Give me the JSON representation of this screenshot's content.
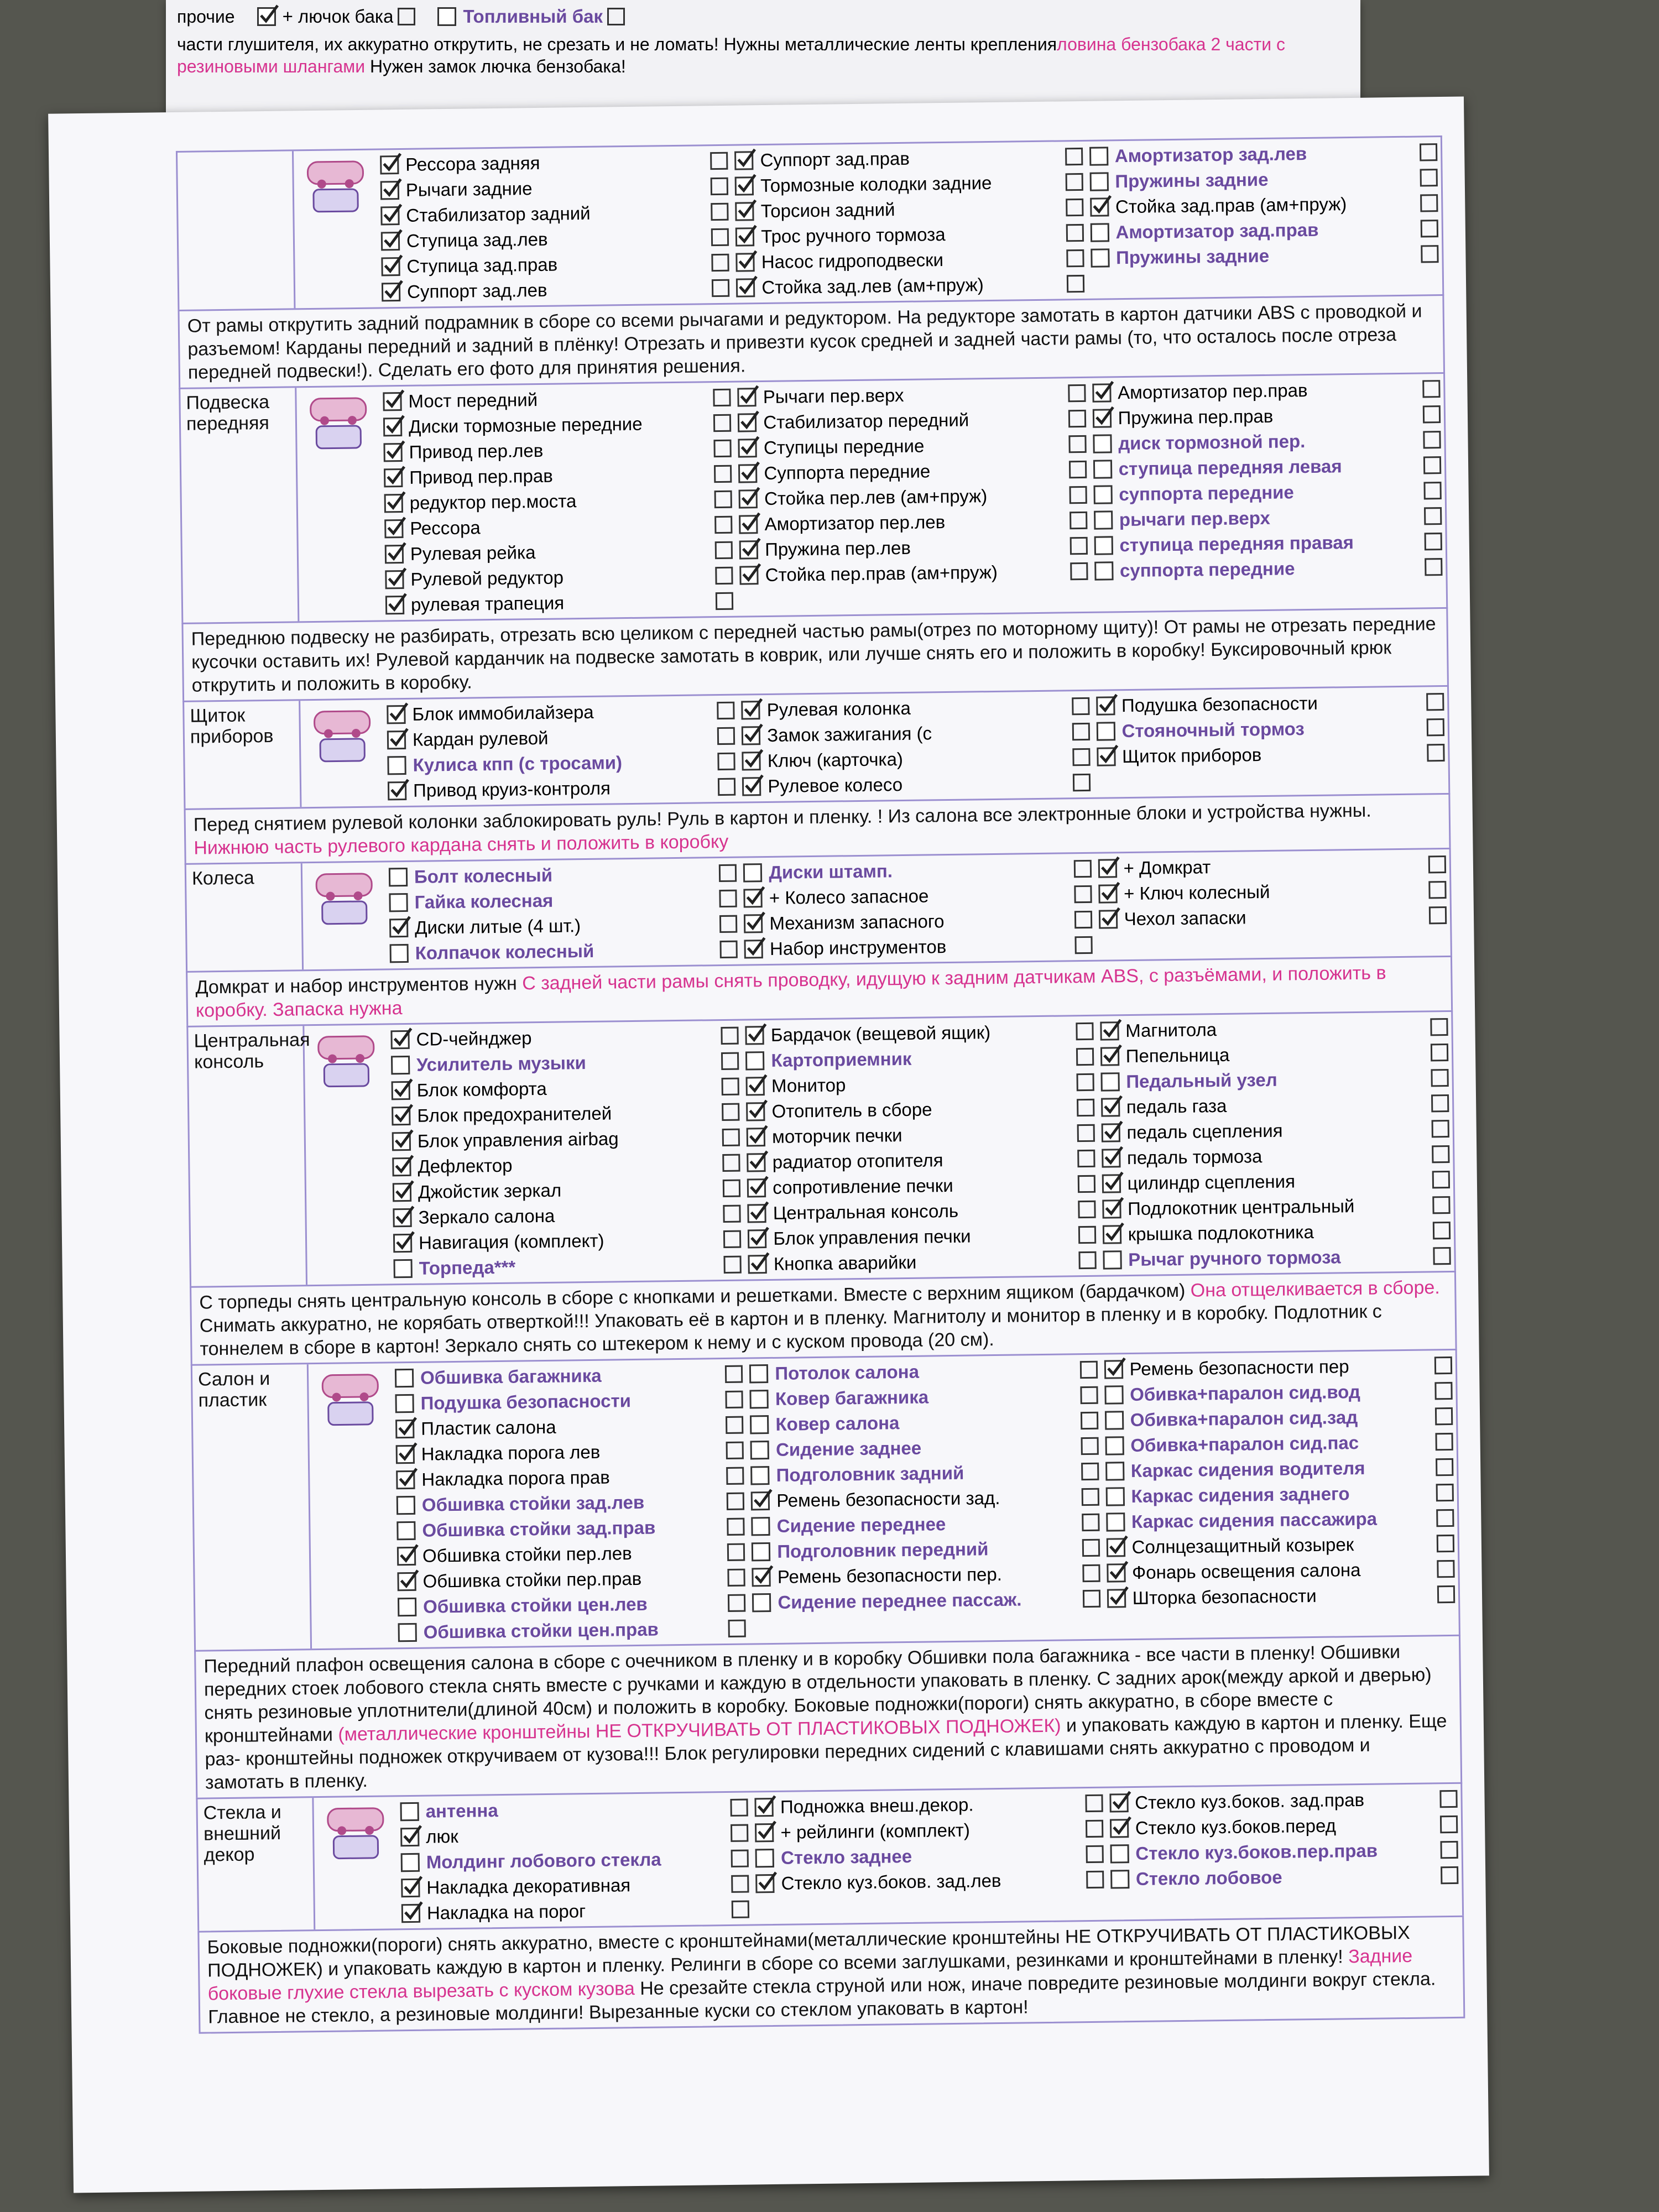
{
  "top_sheet": {
    "label": "прочие",
    "items": [
      {
        "label": "+ лючок бака",
        "checked": true
      },
      {
        "label": "Топливный бак",
        "checked": false
      }
    ],
    "note": [
      {
        "text": "части глушителя, их аккуратно открутить, не срезать и не ломать! Нужны металлические ленты крепления"
      },
      {
        "text": "ловина бензобака 2 части с резиновыми шлангами",
        "color": "#d6338f"
      },
      {
        "text": " Нужен замок лючка бензобака!"
      }
    ]
  },
  "sections": [
    {
      "columns": [
        [
          {
            "label": "Рессора задняя",
            "checked": true
          },
          {
            "label": "Рычаги задние",
            "checked": true
          },
          {
            "label": "Стабилизатор задний",
            "checked": true
          },
          {
            "label": "Ступица зад.лев",
            "checked": true
          },
          {
            "label": "Ступица зад.прав",
            "checked": true
          },
          {
            "label": "Суппорт зад.лев",
            "checked": true
          }
        ],
        [
          {
            "label": "Суппорт зад.прав",
            "checked": true
          },
          {
            "label": "Тормозные колодки задние",
            "checked": true
          },
          {
            "label": "Торсион задний",
            "checked": true
          },
          {
            "label": "Трос ручного тормоза",
            "checked": true
          },
          {
            "label": "Насос гидроподвески",
            "checked": true
          },
          {
            "label": "Стойка зад.лев (ам+пруж)",
            "checked": true
          }
        ],
        [
          {
            "label": "Амортизатор зад.лев",
            "checked": false
          },
          {
            "label": "Пружины задние",
            "checked": false
          },
          {
            "label": "Стойка зад.прав (ам+пруж)",
            "checked": true
          },
          {
            "label": "Амортизатор зад.прав",
            "checked": false
          },
          {
            "label": "Пружины задние",
            "checked": false
          }
        ]
      ],
      "note": [
        {
          "text": "От рамы открутить задний подрамник в сборе со всеми рычагами и редуктором. На редукторе замотать в картон датчики ABS с проводкой и разъемом! Карданы передний и задний в плёнку! Отрезать и привезти кусок средней и задней части рамы (то, что осталось после отреза передней подвески!). Сделать его фото для принятия решения."
        }
      ]
    },
    {
      "label": "Подвеска передняя",
      "columns": [
        [
          {
            "label": "Мост передний",
            "checked": true
          },
          {
            "label": "Диски тормозные передние",
            "checked": true
          },
          {
            "label": "Привод пер.лев",
            "checked": true
          },
          {
            "label": "Привод пер.прав",
            "checked": true
          },
          {
            "label": "редуктор пер.моста",
            "checked": true
          },
          {
            "label": "Рессора",
            "checked": true
          },
          {
            "label": "Рулевая рейка",
            "checked": true
          },
          {
            "label": "Рулевой редуктор",
            "checked": true
          },
          {
            "label": "рулевая трапеция",
            "checked": true
          }
        ],
        [
          {
            "label": "Рычаги пер.верх",
            "checked": true
          },
          {
            "label": "Стабилизатор передний",
            "checked": true
          },
          {
            "label": "Ступицы передние",
            "checked": true
          },
          {
            "label": "Суппорта передние",
            "checked": true
          },
          {
            "label": "Стойка пер.лев (ам+пруж)",
            "checked": true
          },
          {
            "label": "Амортизатор пер.лев",
            "checked": true
          },
          {
            "label": "Пружина пер.лев",
            "checked": true
          },
          {
            "label": "Стойка пер.прав (ам+пруж)",
            "checked": true
          }
        ],
        [
          {
            "label": "Амортизатор пер.прав",
            "checked": true
          },
          {
            "label": "Пружина пер.прав",
            "checked": true
          },
          {
            "label": "диск тормозной пер.",
            "checked": false
          },
          {
            "label": "ступица передняя левая",
            "checked": false
          },
          {
            "label": "суппорта передние",
            "checked": false
          },
          {
            "label": "рычаги пер.верх",
            "checked": false
          },
          {
            "label": "ступица передняя правая",
            "checked": false
          },
          {
            "label": "суппорта передние",
            "checked": false
          }
        ]
      ],
      "note": [
        {
          "text": "Переднюю подвеску не разбирать, отрезать всю целиком с передней частью рамы(отрез по моторному щиту)! От рамы не отрезать передние кусочки оставить их! Рулевой карданчик на подвеске замотать в коврик, или лучше снять его и положить в коробку! Буксировочный крюк открутить и положить в коробку."
        }
      ]
    },
    {
      "label": "Щиток приборов",
      "columns": [
        [
          {
            "label": "Блок иммобилайзера",
            "checked": true
          },
          {
            "label": "Кардан рулевой",
            "checked": true
          },
          {
            "label": "Кулиса кпп (с тросами)",
            "checked": false
          },
          {
            "label": "Привод круиз-контроля",
            "checked": true
          }
        ],
        [
          {
            "label": "Рулевая колонка",
            "checked": true
          },
          {
            "label": "Замок зажигания (с",
            "checked": true
          },
          {
            "label": "Ключ (карточка)",
            "checked": true
          },
          {
            "label": "Рулевое колесо",
            "checked": true
          }
        ],
        [
          {
            "label": "Подушка безопасности",
            "checked": true
          },
          {
            "label": "Стояночный тормоз",
            "checked": false
          },
          {
            "label": "Щиток приборов",
            "checked": true
          }
        ]
      ],
      "note": [
        {
          "text": "Перед снятием рулевой колонки заблокировать руль! Руль в картон и пленку. ! Из салона все электронные блоки и устройства нужны. "
        },
        {
          "text": "Нижнюю часть рулевого кардана снять и положить в коробку",
          "color": "#d6338f"
        }
      ]
    },
    {
      "label": "Колеса",
      "columns": [
        [
          {
            "label": "Болт колесный",
            "checked": false
          },
          {
            "label": "Гайка колесная",
            "checked": false
          },
          {
            "label": "Диски литые (4 шт.)",
            "checked": true
          },
          {
            "label": "Колпачок колесный",
            "checked": false
          }
        ],
        [
          {
            "label": "Диски штамп.",
            "checked": false
          },
          {
            "label": "+ Колесо запасное",
            "checked": true
          },
          {
            "label": "Механизм запасного",
            "checked": true
          },
          {
            "label": "Набор инструментов",
            "checked": true
          }
        ],
        [
          {
            "label": "+ Домкрат",
            "checked": true
          },
          {
            "label": "+ Ключ колесный",
            "checked": true
          },
          {
            "label": "Чехол запаски",
            "checked": true
          }
        ]
      ],
      "note": [
        {
          "text": "Домкрат и набор инструментов нужн "
        },
        {
          "text": "С задней части рамы снять проводку, идущую к задним датчикам ABS, с разъёмами, и положить в коробку. Запаска нужна",
          "color": "#d6338f"
        }
      ]
    },
    {
      "label": "Центральная консоль",
      "columns": [
        [
          {
            "label": "CD-чейнджер",
            "checked": true
          },
          {
            "label": "Усилитель музыки",
            "checked": false
          },
          {
            "label": "Блок комфорта",
            "checked": true
          },
          {
            "label": "Блок предохранителей",
            "checked": true
          },
          {
            "label": "Блок управления airbag",
            "checked": true
          },
          {
            "label": "Дефлектор",
            "checked": true
          },
          {
            "label": "Джойстик зеркал",
            "checked": true
          },
          {
            "label": "Зеркало салона",
            "checked": true
          },
          {
            "label": "Навигация (комплект)",
            "checked": true
          },
          {
            "label": "Торпеда***",
            "checked": false
          }
        ],
        [
          {
            "label": "Бардачок (вещевой ящик)",
            "checked": true
          },
          {
            "label": "Картоприемник",
            "checked": false
          },
          {
            "label": "Монитор",
            "checked": true
          },
          {
            "label": "Отопитель в сборе",
            "checked": true
          },
          {
            "label": "моторчик печки",
            "checked": true
          },
          {
            "label": "радиатор отопителя",
            "checked": true
          },
          {
            "label": "сопротивление печки",
            "checked": true
          },
          {
            "label": "Центральная консоль",
            "checked": true
          },
          {
            "label": "Блок управления печки",
            "checked": true
          },
          {
            "label": "Кнопка аварийки",
            "checked": true
          }
        ],
        [
          {
            "label": "Магнитола",
            "checked": true
          },
          {
            "label": "Пепельница",
            "checked": true
          },
          {
            "label": "Педальный узел",
            "checked": false
          },
          {
            "label": "педаль газа",
            "checked": true
          },
          {
            "label": "педаль сцепления",
            "checked": true
          },
          {
            "label": "педаль тормоза",
            "checked": true
          },
          {
            "label": "цилиндр сцепления",
            "checked": true
          },
          {
            "label": "Подлокотник центральный",
            "checked": true
          },
          {
            "label": "крышка подлокотника",
            "checked": true
          },
          {
            "label": "Рычаг ручного тормоза",
            "checked": false
          }
        ]
      ],
      "note": [
        {
          "text": "С торпеды снять центральную консоль в сборе с кнопками и решетками. Вместе с верхним ящиком (бардачком) "
        },
        {
          "text": "Она отщелкивается в сборе.",
          "color": "#d6338f"
        },
        {
          "text": " Снимать аккуратно, не корябать отверткой!!! Упаковать её в картон и в пленку. Магнитолу и монитор в пленку и в коробку. Подлотник с тоннелем в сборе в картон! Зеркало снять со штекером к нему и с куском провода (20 см)."
        }
      ]
    },
    {
      "label": "Салон и пластик",
      "columns": [
        [
          {
            "label": "Обшивка багажника",
            "checked": false
          },
          {
            "label": "Подушка безопасности",
            "checked": false
          },
          {
            "label": "Пластик салона",
            "checked": true
          },
          {
            "label": "Накладка порога лев",
            "checked": true
          },
          {
            "label": "Накладка порога прав",
            "checked": true
          },
          {
            "label": "Обшивка стойки зад.лев",
            "checked": false
          },
          {
            "label": "Обшивка стойки зад.прав",
            "checked": false
          },
          {
            "label": "Обшивка стойки пер.лев",
            "checked": true
          },
          {
            "label": "Обшивка стойки пер.прав",
            "checked": true
          },
          {
            "label": "Обшивка стойки цен.лев",
            "checked": false
          },
          {
            "label": "Обшивка стойки цен.прав",
            "checked": false
          }
        ],
        [
          {
            "label": "Потолок салона",
            "checked": false
          },
          {
            "label": "Ковер багажника",
            "checked": false
          },
          {
            "label": "Ковер салона",
            "checked": false
          },
          {
            "label": "Сидение заднее",
            "checked": false
          },
          {
            "label": "Подголовник задний",
            "checked": false
          },
          {
            "label": "Ремень безопасности зад.",
            "checked": true
          },
          {
            "label": "Сидение переднее",
            "checked": false
          },
          {
            "label": "Подголовник передний",
            "checked": false
          },
          {
            "label": "Ремень безопасности пер.",
            "checked": true
          },
          {
            "label": "Сидение переднее пассаж.",
            "checked": false
          }
        ],
        [
          {
            "label": "Ремень безопасности пер",
            "checked": true
          },
          {
            "label": "Обивка+паралон сид.вод",
            "checked": false
          },
          {
            "label": "Обивка+паралон сид.зад",
            "checked": false
          },
          {
            "label": "Обивка+паралон сид.пас",
            "checked": false
          },
          {
            "label": "Каркас сидения водителя",
            "checked": false
          },
          {
            "label": "Каркас сидения заднего",
            "checked": false
          },
          {
            "label": "Каркас сидения пассажира",
            "checked": false
          },
          {
            "label": "Солнцезащитный козырек",
            "checked": true
          },
          {
            "label": "Фонарь освещения салона",
            "checked": true
          },
          {
            "label": "Шторка безопасности",
            "checked": true
          }
        ]
      ],
      "note": [
        {
          "text": "Передний плафон освещения салона в сборе с очечником в пленку и в коробку Обшивки пола багажника - все части в пленку! Обшивки передних стоек лобового стекла снять вместе с ручками и каждую в отдельности упаковать в пленку. С задних арок(между аркой и дверью) снять резиновые уплотнители(длиной 40см) и положить в коробку. Боковые подножки(пороги) снять аккуратно, в сборе вместе с кронштейнами "
        },
        {
          "text": "(металлические кронштейны НЕ ОТКРУЧИВАТЬ ОТ ПЛАСТИКОВЫХ ПОДНОЖЕК)",
          "color": "#d6338f"
        },
        {
          "text": " и упаковать каждую в картон и пленку. Еще раз- кронштейны подножек откручиваем от кузова!!! Блок регулировки передних сидений с клавишами снять аккуратно с проводом и замотать в пленку."
        }
      ]
    },
    {
      "label": "Стекла и внешний декор",
      "columns": [
        [
          {
            "label": "антенна",
            "checked": false
          },
          {
            "label": "люк",
            "checked": true
          },
          {
            "label": "Молдинг лобового стекла",
            "checked": false
          },
          {
            "label": "Накладка декоративная",
            "checked": true
          },
          {
            "label": "Накладка на порог",
            "checked": true
          }
        ],
        [
          {
            "label": "Подножка внеш.декор.",
            "checked": true
          },
          {
            "label": "+ рейлинги (комплект)",
            "checked": true
          },
          {
            "label": "Стекло заднее",
            "checked": false
          },
          {
            "label": "Стекло куз.боков. зад.лев",
            "checked": true
          }
        ],
        [
          {
            "label": "Стекло куз.боков. зад.прав",
            "checked": true
          },
          {
            "label": "Стекло куз.боков.перед",
            "checked": true
          },
          {
            "label": "Стекло куз.боков.пер.прав",
            "checked": false
          },
          {
            "label": "Стекло лобовое",
            "checked": false
          }
        ]
      ],
      "note": [
        {
          "text": "Боковые подножки(пороги) снять аккуратно, вместе с кронштейнами(металлические кронштейны НЕ ОТКРУЧИВАТЬ ОТ ПЛАСТИКОВЫХ ПОДНОЖЕК) и упаковать каждую в картон и пленку. Релинги в сборе со всеми заглушками, резинками и кронштейнами в пленку! "
        },
        {
          "text": "Задние боковые глухие стекла вырезать с куском кузова",
          "color": "#d6338f"
        },
        {
          "text": " Не срезайте стекла струной или нож, иначе повредите резиновые молдинги вокруг стекла. Главное не стекло, а резиновые молдинги! Вырезанные куски со стеклом упаковать в картон!"
        }
      ]
    }
  ]
}
